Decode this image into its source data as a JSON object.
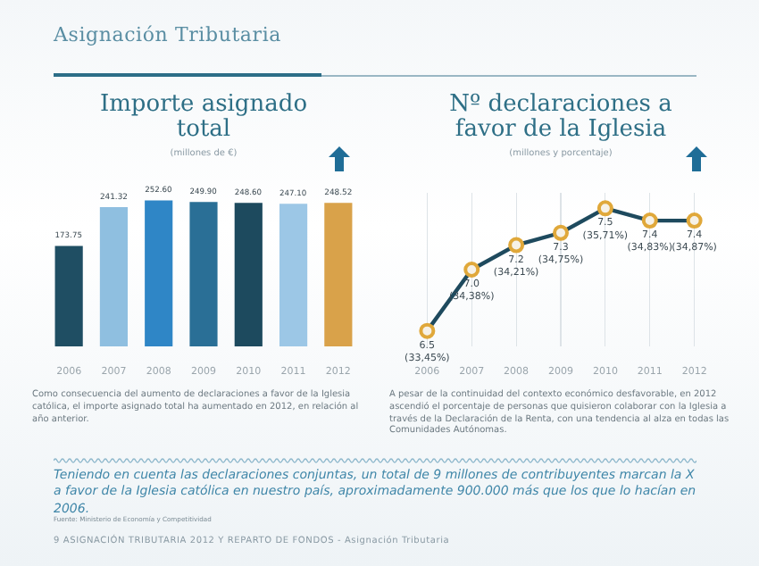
{
  "chart_data": [
    {
      "type": "bar",
      "title": "Importe asignado total",
      "subtitle": "(millones de €)",
      "categories": [
        "2006",
        "2007",
        "2008",
        "2009",
        "2010",
        "2011",
        "2012"
      ],
      "values": [
        173.75,
        241.32,
        252.6,
        249.9,
        248.6,
        247.1,
        248.52
      ],
      "colors": [
        "#1f4e63",
        "#8fbfe0",
        "#2f86c6",
        "#2a6f96",
        "#1d4a5e",
        "#9cc7e6",
        "#d9a24a"
      ],
      "value_labels": [
        "173.75",
        "241.32",
        "252.60",
        "249.90",
        "248.60",
        "247.10",
        "248.52"
      ],
      "tick_labels": "x",
      "annotations": [
        "Como consecuencia del aumento de declaraciones a favor de la Iglesia católica, el importe asignado total ha aumentado en 2012, en relación al año anterior."
      ]
    },
    {
      "type": "line",
      "title": "Nº declaraciones a favor de la Iglesia",
      "subtitle": "(millones y porcentaje)",
      "categories": [
        "2006",
        "2007",
        "2008",
        "2009",
        "2010",
        "2011",
        "2012"
      ],
      "color": "#1e4a5e",
      "values": [
        6.5,
        7.0,
        7.2,
        7.3,
        7.5,
        7.4,
        7.4
      ],
      "value_labels": [
        "6.5 (33,45%)",
        "7.0 (34,38%)",
        "7.2 (34,21%)",
        "7.3 (34,75%)",
        "7.5 (35,71%)",
        "7.4 (34,83%)",
        "7.4 (34,87%)"
      ],
      "tick_labels": "x",
      "grid": "x",
      "marker": "circle",
      "annotations": [
        "A pesar de la continuidad del contexto económico desfavorable, en 2012 ascendió el porcentaje de personas que quisieron colaborar con la Iglesia a través de la Declaración de la Renta, con una tendencia al alza en todas las Comunidades Autónomas."
      ]
    },
    {
      "type": "other",
      "title": "Asignación Tributaria",
      "annotations": [
        "Teniendo en cuenta las declaraciones conjuntas, un total de 9 millones de contribuyentes marcan la X a favor de la Iglesia católica en nuestro país, aproximadamente 900.000 más que los que lo hacían en 2006.",
        "Fuente: Ministerio de Economía y Competitividad",
        "9 ASIGNACIÓN TRIBUTARIA 2012 Y REPARTO DE FONDOS - Asignación Tributaria"
      ]
    }
  ]
}
